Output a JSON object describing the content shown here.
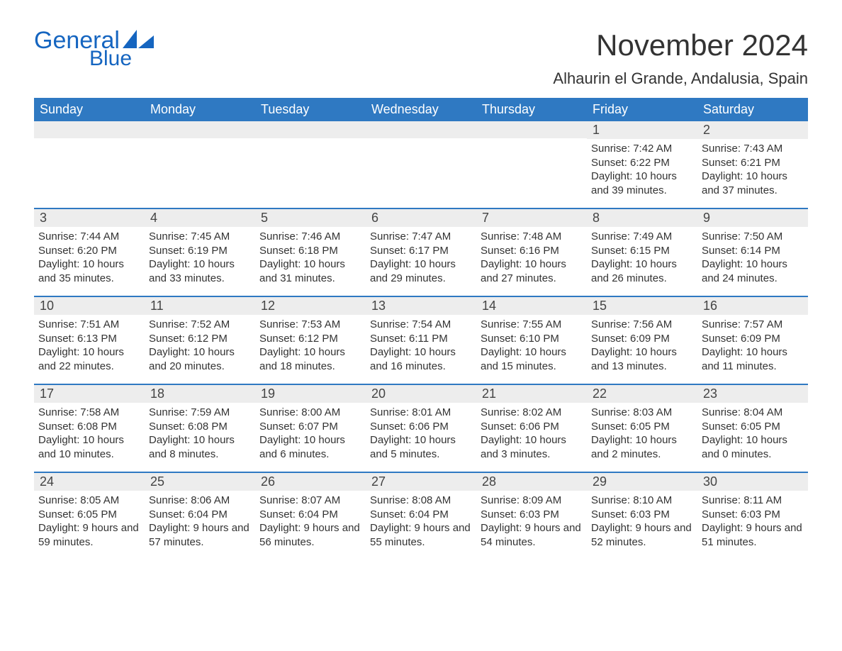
{
  "logo": {
    "text_main": "General",
    "text_sub": "Blue",
    "color": "#1565c0"
  },
  "title": "November 2024",
  "location": "Alhaurin el Grande, Andalusia, Spain",
  "colors": {
    "header_bg": "#2f79c2",
    "header_text": "#ffffff",
    "daynum_bg": "#ededed",
    "week_border": "#2f79c2",
    "body_text": "#333333",
    "background": "#ffffff"
  },
  "typography": {
    "title_fontsize": 42,
    "location_fontsize": 22,
    "weekday_fontsize": 18,
    "daynum_fontsize": 18,
    "info_fontsize": 15
  },
  "weekdays": [
    "Sunday",
    "Monday",
    "Tuesday",
    "Wednesday",
    "Thursday",
    "Friday",
    "Saturday"
  ],
  "weeks": [
    [
      {
        "n": "",
        "sunrise": "",
        "sunset": "",
        "daylight": ""
      },
      {
        "n": "",
        "sunrise": "",
        "sunset": "",
        "daylight": ""
      },
      {
        "n": "",
        "sunrise": "",
        "sunset": "",
        "daylight": ""
      },
      {
        "n": "",
        "sunrise": "",
        "sunset": "",
        "daylight": ""
      },
      {
        "n": "",
        "sunrise": "",
        "sunset": "",
        "daylight": ""
      },
      {
        "n": "1",
        "sunrise": "Sunrise: 7:42 AM",
        "sunset": "Sunset: 6:22 PM",
        "daylight": "Daylight: 10 hours and 39 minutes."
      },
      {
        "n": "2",
        "sunrise": "Sunrise: 7:43 AM",
        "sunset": "Sunset: 6:21 PM",
        "daylight": "Daylight: 10 hours and 37 minutes."
      }
    ],
    [
      {
        "n": "3",
        "sunrise": "Sunrise: 7:44 AM",
        "sunset": "Sunset: 6:20 PM",
        "daylight": "Daylight: 10 hours and 35 minutes."
      },
      {
        "n": "4",
        "sunrise": "Sunrise: 7:45 AM",
        "sunset": "Sunset: 6:19 PM",
        "daylight": "Daylight: 10 hours and 33 minutes."
      },
      {
        "n": "5",
        "sunrise": "Sunrise: 7:46 AM",
        "sunset": "Sunset: 6:18 PM",
        "daylight": "Daylight: 10 hours and 31 minutes."
      },
      {
        "n": "6",
        "sunrise": "Sunrise: 7:47 AM",
        "sunset": "Sunset: 6:17 PM",
        "daylight": "Daylight: 10 hours and 29 minutes."
      },
      {
        "n": "7",
        "sunrise": "Sunrise: 7:48 AM",
        "sunset": "Sunset: 6:16 PM",
        "daylight": "Daylight: 10 hours and 27 minutes."
      },
      {
        "n": "8",
        "sunrise": "Sunrise: 7:49 AM",
        "sunset": "Sunset: 6:15 PM",
        "daylight": "Daylight: 10 hours and 26 minutes."
      },
      {
        "n": "9",
        "sunrise": "Sunrise: 7:50 AM",
        "sunset": "Sunset: 6:14 PM",
        "daylight": "Daylight: 10 hours and 24 minutes."
      }
    ],
    [
      {
        "n": "10",
        "sunrise": "Sunrise: 7:51 AM",
        "sunset": "Sunset: 6:13 PM",
        "daylight": "Daylight: 10 hours and 22 minutes."
      },
      {
        "n": "11",
        "sunrise": "Sunrise: 7:52 AM",
        "sunset": "Sunset: 6:12 PM",
        "daylight": "Daylight: 10 hours and 20 minutes."
      },
      {
        "n": "12",
        "sunrise": "Sunrise: 7:53 AM",
        "sunset": "Sunset: 6:12 PM",
        "daylight": "Daylight: 10 hours and 18 minutes."
      },
      {
        "n": "13",
        "sunrise": "Sunrise: 7:54 AM",
        "sunset": "Sunset: 6:11 PM",
        "daylight": "Daylight: 10 hours and 16 minutes."
      },
      {
        "n": "14",
        "sunrise": "Sunrise: 7:55 AM",
        "sunset": "Sunset: 6:10 PM",
        "daylight": "Daylight: 10 hours and 15 minutes."
      },
      {
        "n": "15",
        "sunrise": "Sunrise: 7:56 AM",
        "sunset": "Sunset: 6:09 PM",
        "daylight": "Daylight: 10 hours and 13 minutes."
      },
      {
        "n": "16",
        "sunrise": "Sunrise: 7:57 AM",
        "sunset": "Sunset: 6:09 PM",
        "daylight": "Daylight: 10 hours and 11 minutes."
      }
    ],
    [
      {
        "n": "17",
        "sunrise": "Sunrise: 7:58 AM",
        "sunset": "Sunset: 6:08 PM",
        "daylight": "Daylight: 10 hours and 10 minutes."
      },
      {
        "n": "18",
        "sunrise": "Sunrise: 7:59 AM",
        "sunset": "Sunset: 6:08 PM",
        "daylight": "Daylight: 10 hours and 8 minutes."
      },
      {
        "n": "19",
        "sunrise": "Sunrise: 8:00 AM",
        "sunset": "Sunset: 6:07 PM",
        "daylight": "Daylight: 10 hours and 6 minutes."
      },
      {
        "n": "20",
        "sunrise": "Sunrise: 8:01 AM",
        "sunset": "Sunset: 6:06 PM",
        "daylight": "Daylight: 10 hours and 5 minutes."
      },
      {
        "n": "21",
        "sunrise": "Sunrise: 8:02 AM",
        "sunset": "Sunset: 6:06 PM",
        "daylight": "Daylight: 10 hours and 3 minutes."
      },
      {
        "n": "22",
        "sunrise": "Sunrise: 8:03 AM",
        "sunset": "Sunset: 6:05 PM",
        "daylight": "Daylight: 10 hours and 2 minutes."
      },
      {
        "n": "23",
        "sunrise": "Sunrise: 8:04 AM",
        "sunset": "Sunset: 6:05 PM",
        "daylight": "Daylight: 10 hours and 0 minutes."
      }
    ],
    [
      {
        "n": "24",
        "sunrise": "Sunrise: 8:05 AM",
        "sunset": "Sunset: 6:05 PM",
        "daylight": "Daylight: 9 hours and 59 minutes."
      },
      {
        "n": "25",
        "sunrise": "Sunrise: 8:06 AM",
        "sunset": "Sunset: 6:04 PM",
        "daylight": "Daylight: 9 hours and 57 minutes."
      },
      {
        "n": "26",
        "sunrise": "Sunrise: 8:07 AM",
        "sunset": "Sunset: 6:04 PM",
        "daylight": "Daylight: 9 hours and 56 minutes."
      },
      {
        "n": "27",
        "sunrise": "Sunrise: 8:08 AM",
        "sunset": "Sunset: 6:04 PM",
        "daylight": "Daylight: 9 hours and 55 minutes."
      },
      {
        "n": "28",
        "sunrise": "Sunrise: 8:09 AM",
        "sunset": "Sunset: 6:03 PM",
        "daylight": "Daylight: 9 hours and 54 minutes."
      },
      {
        "n": "29",
        "sunrise": "Sunrise: 8:10 AM",
        "sunset": "Sunset: 6:03 PM",
        "daylight": "Daylight: 9 hours and 52 minutes."
      },
      {
        "n": "30",
        "sunrise": "Sunrise: 8:11 AM",
        "sunset": "Sunset: 6:03 PM",
        "daylight": "Daylight: 9 hours and 51 minutes."
      }
    ]
  ]
}
